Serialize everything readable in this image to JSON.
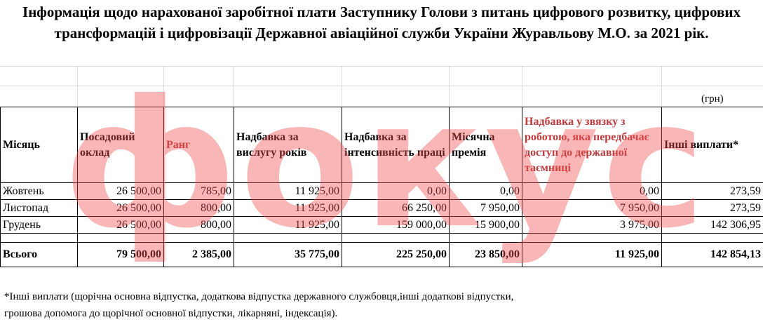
{
  "title": "Інформація щодо нарахованої заробітної плати Заступнику Голови  з питань цифрового розвитку, цифрових трансформацій і цифровізації Державної авіаційної служби України Журавльову М.О. за 2021 рік.",
  "unit": "(грн)",
  "headers": {
    "month": "Місяць",
    "salary": "Посадовий оклад",
    "rank": "Ранг",
    "seniority": "Надбавка за вислугу років",
    "intensity": "Надбавка за інтенсивність праці",
    "bonus": "Місячна премія",
    "secret": "Надбавка у звязку з роботою, яка передбачає доступ до державної таємниці",
    "other": "Інші виплати*"
  },
  "rows": [
    {
      "month": "Жовтень",
      "salary": "26 500,00",
      "rank": "785,00",
      "seniority": "11 925,00",
      "intensity": "0,00",
      "bonus": "0,00",
      "secret": "0,00",
      "other": "273,59"
    },
    {
      "month": "Листопад",
      "salary": "26 500,00",
      "rank": "800,00",
      "seniority": "11 925,00",
      "intensity": "66 250,00",
      "bonus": "7 950,00",
      "secret": "7 950,00",
      "other": "273,59"
    },
    {
      "month": "Грудень",
      "salary": "26 500,00",
      "rank": "800,00",
      "seniority": "11 925,00",
      "intensity": "159 000,00",
      "bonus": "15 900,00",
      "secret": "3 975,00",
      "other": "142 306,95"
    }
  ],
  "total": {
    "month": "Всього",
    "salary": "79 500,00",
    "rank": "2 385,00",
    "seniority": "35 775,00",
    "intensity": "225 250,00",
    "bonus": "23 850,00",
    "secret": "11 925,00",
    "other": "142 854,13"
  },
  "footnote": {
    "line1": "*Інші виплати (щорічна основна відпустка, додаткова відпустка державного службовця,інші додаткові відпустки,",
    "line2": "грошова  допомога до щорічної основної відпустки, лікарняні, індексація)."
  },
  "watermark": "фокус",
  "colors": {
    "watermark": "#f05050",
    "header_accent": "#c0393b"
  }
}
